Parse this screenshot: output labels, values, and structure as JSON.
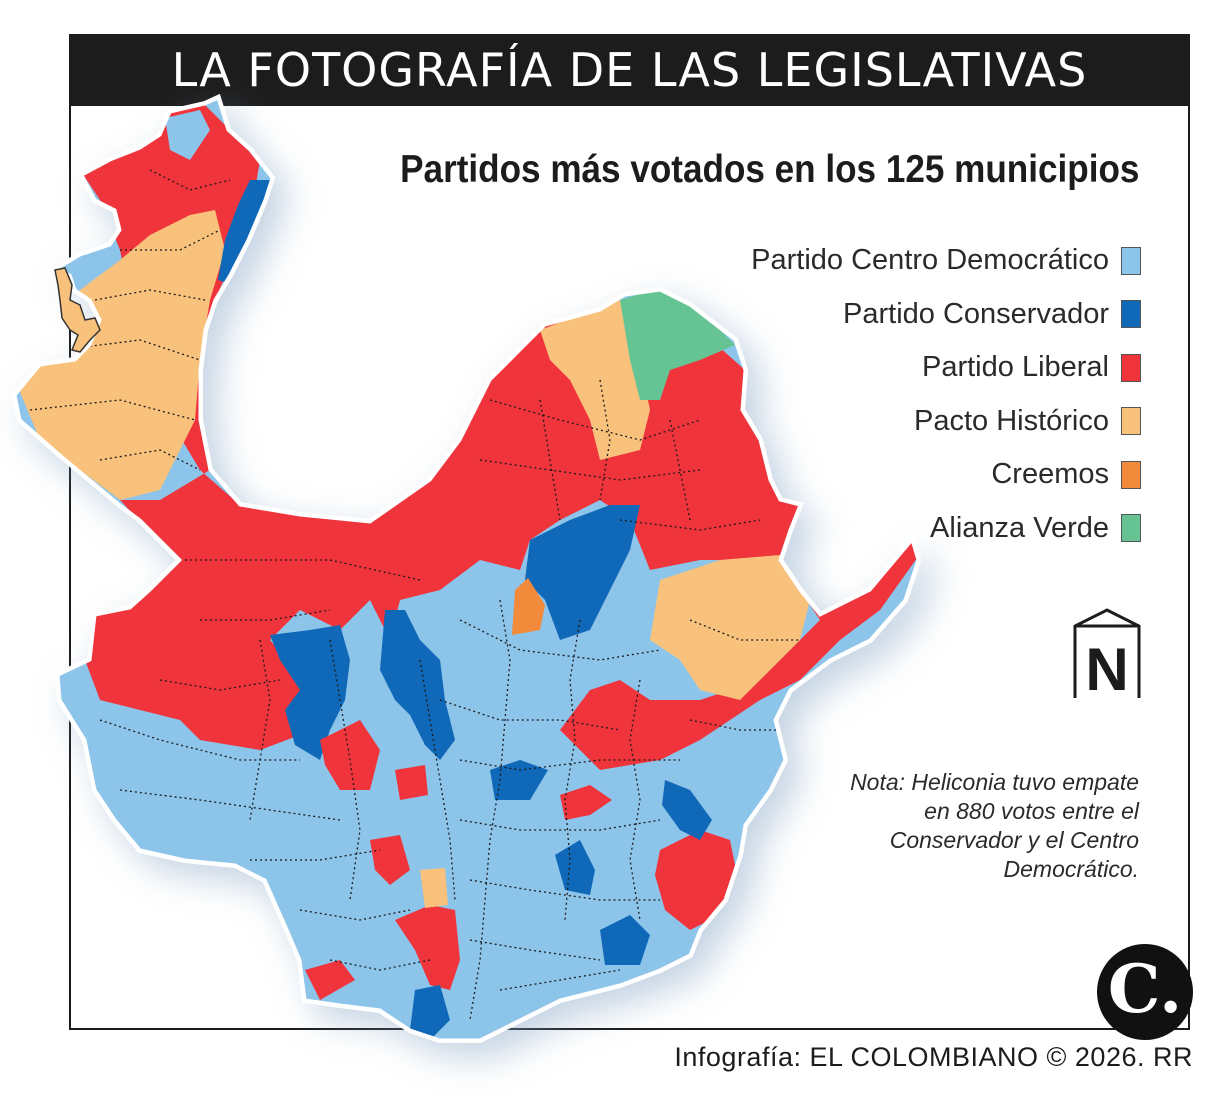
{
  "header": {
    "title": "LA FOTOGRAFÍA DE LAS LEGISLATIVAS"
  },
  "map": {
    "subtitle": "Partidos más votados en los 125 municipios",
    "legend": [
      {
        "label": "Partido Centro Democrático",
        "color": "#8cc4ea"
      },
      {
        "label": "Partido Conservador",
        "color": "#1068b8"
      },
      {
        "label": "Partido Liberal",
        "color": "#f0343c"
      },
      {
        "label": "Pacto Histórico",
        "color": "#f8c27c"
      },
      {
        "label": "Creemos",
        "color": "#f28a3c"
      },
      {
        "label": "Alianza Verde",
        "color": "#66c494"
      }
    ],
    "north_label": "N",
    "note": "Nota: Heliconia tuvo empate en 880 votos entre el Conservador y el Centro Democrático."
  },
  "footer": {
    "logo_letter": "C.",
    "credit": "Infografía: EL COLOMBIANO © 2026. RR"
  }
}
